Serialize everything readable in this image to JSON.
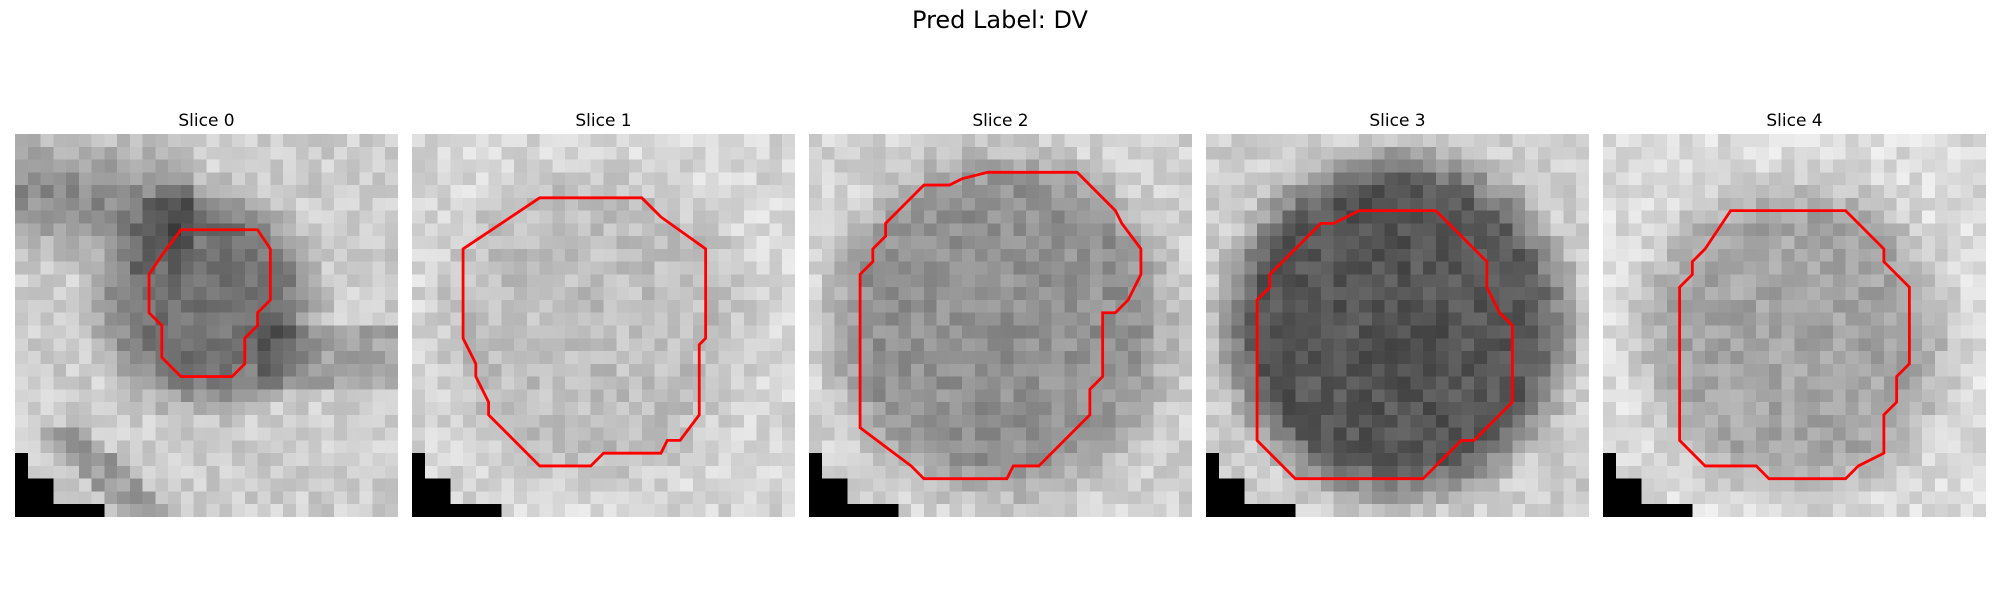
{
  "figure": {
    "title": "Pred Label: DV"
  },
  "panels": [
    {
      "title": "Slice 0",
      "contour_color": "#ff0000",
      "tone": "light-with-dark-band"
    },
    {
      "title": "Slice 1",
      "contour_color": "#ff0000",
      "tone": "light"
    },
    {
      "title": "Slice 2",
      "contour_color": "#ff0000",
      "tone": "medium"
    },
    {
      "title": "Slice 3",
      "contour_color": "#ff0000",
      "tone": "dark"
    },
    {
      "title": "Slice 4",
      "contour_color": "#ff0000",
      "tone": "medium-light"
    }
  ]
}
